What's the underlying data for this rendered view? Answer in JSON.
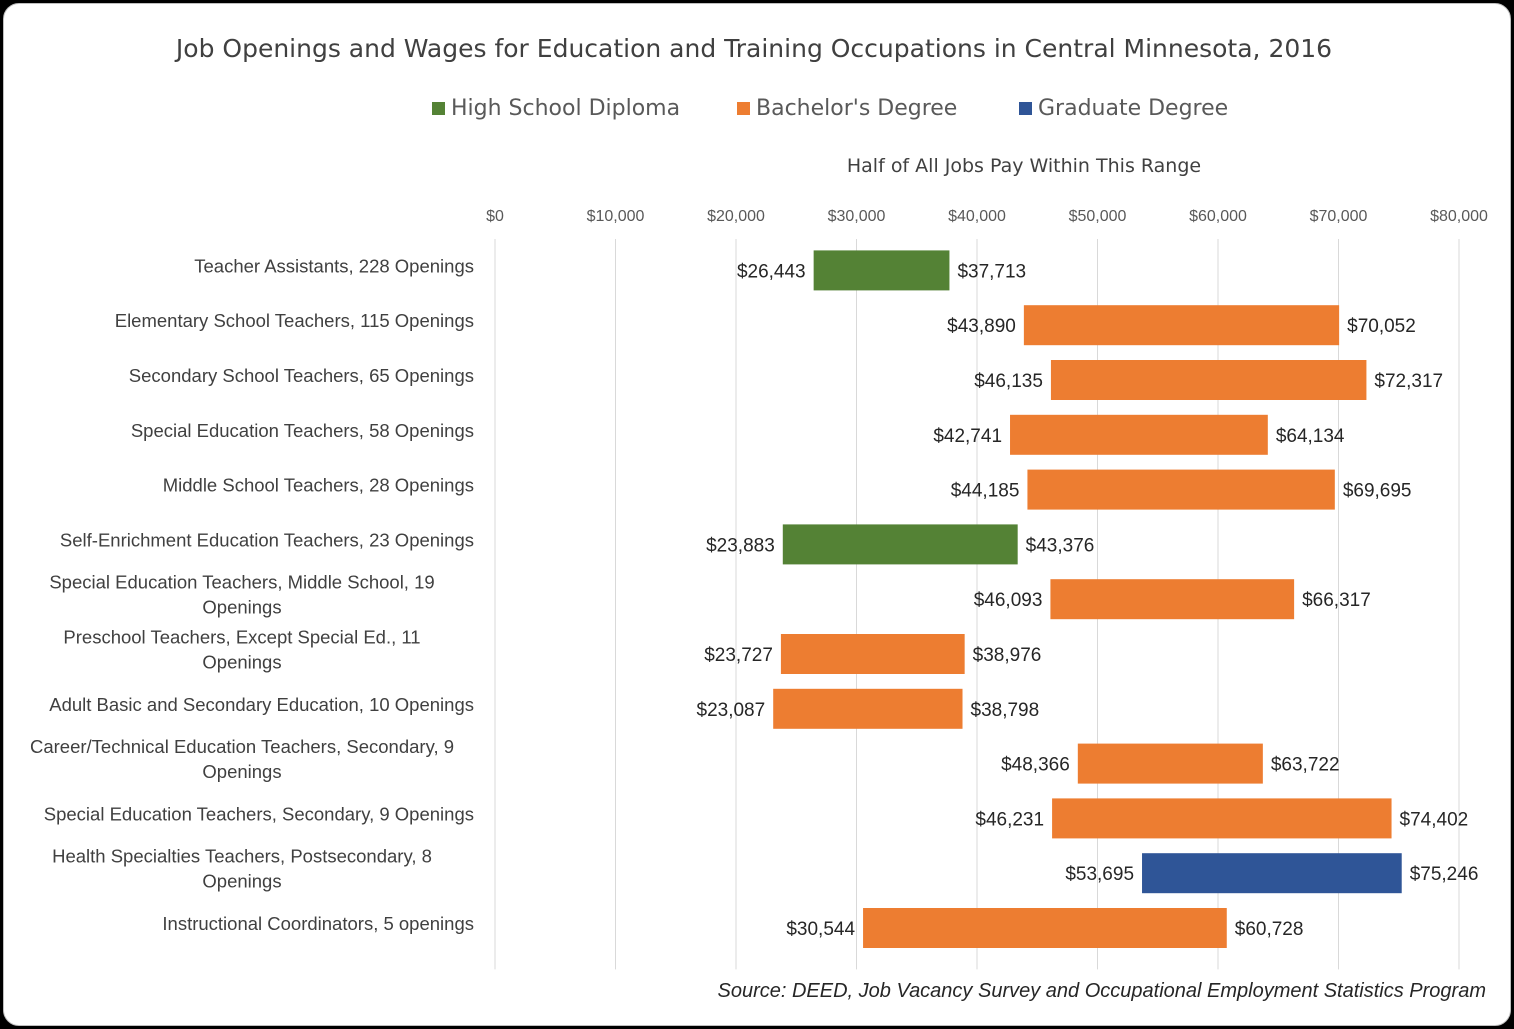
{
  "chart_data": {
    "type": "bar",
    "subtype": "floating-range-horizontal",
    "title": "Job Openings and Wages for Education and Training Occupations in Central Minnesota, 2016",
    "xlabel": "Half of All Jobs Pay Within This Range",
    "xlim": [
      0,
      80000
    ],
    "xticks": [
      "$0",
      "$10,000",
      "$20,000",
      "$30,000",
      "$40,000",
      "$50,000",
      "$60,000",
      "$70,000",
      "$80,000"
    ],
    "xtick_values": [
      0,
      10000,
      20000,
      30000,
      40000,
      50000,
      60000,
      70000,
      80000
    ],
    "grid": "vertical",
    "legend_position": "top",
    "legend": [
      {
        "name": "High School Diploma",
        "color": "#548235"
      },
      {
        "name": "Bachelor's Degree",
        "color": "#ed7d31"
      },
      {
        "name": "Graduate Degree",
        "color": "#2f5597"
      }
    ],
    "rows": [
      {
        "category": "Teacher Assistants, 228 Openings",
        "low": 26443,
        "high": 37713,
        "low_label": "$26,443",
        "high_label": "$37,713",
        "series": 0
      },
      {
        "category": "Elementary School Teachers, 115 Openings",
        "low": 43890,
        "high": 70052,
        "low_label": "$43,890",
        "high_label": "$70,052",
        "series": 1
      },
      {
        "category": "Secondary School Teachers, 65 Openings",
        "low": 46135,
        "high": 72317,
        "low_label": "$46,135",
        "high_label": "$72,317",
        "series": 1
      },
      {
        "category": "Special Education Teachers, 58 Openings",
        "low": 42741,
        "high": 64134,
        "low_label": "$42,741",
        "high_label": "$64,134",
        "series": 1
      },
      {
        "category": "Middle School Teachers, 28 Openings",
        "low": 44185,
        "high": 69695,
        "low_label": "$44,185",
        "high_label": "$69,695",
        "series": 1
      },
      {
        "category": "Self-Enrichment Education Teachers, 23 Openings",
        "low": 23883,
        "high": 43376,
        "low_label": "$23,883",
        "high_label": "$43,376",
        "series": 0
      },
      {
        "category": "Special Education Teachers, Middle School, 19 Openings",
        "low": 46093,
        "high": 66317,
        "low_label": "$46,093",
        "high_label": "$66,317",
        "series": 1
      },
      {
        "category": "Preschool Teachers, Except Special Ed., 11 Openings",
        "low": 23727,
        "high": 38976,
        "low_label": "$23,727",
        "high_label": "$38,976",
        "series": 1
      },
      {
        "category": "Adult Basic and Secondary Education, 10 Openings",
        "low": 23087,
        "high": 38798,
        "low_label": "$23,087",
        "high_label": "$38,798",
        "series": 1
      },
      {
        "category": "Career/Technical Education Teachers, Secondary, 9 Openings",
        "low": 48366,
        "high": 63722,
        "low_label": "$48,366",
        "high_label": "$63,722",
        "series": 1
      },
      {
        "category": "Special Education Teachers, Secondary, 9 Openings",
        "low": 46231,
        "high": 74402,
        "low_label": "$46,231",
        "high_label": "$74,402",
        "series": 1
      },
      {
        "category": "Health Specialties Teachers, Postsecondary, 8 Openings",
        "low": 53695,
        "high": 75246,
        "low_label": "$53,695",
        "high_label": "$75,246",
        "series": 2
      },
      {
        "category": "Instructional Coordinators, 5 openings",
        "low": 30544,
        "high": 60728,
        "low_label": "$30,544",
        "high_label": "$60,728",
        "series": 1
      }
    ],
    "source": "Source: DEED, Job Vacancy Survey and Occupational Employment Statistics Program"
  }
}
